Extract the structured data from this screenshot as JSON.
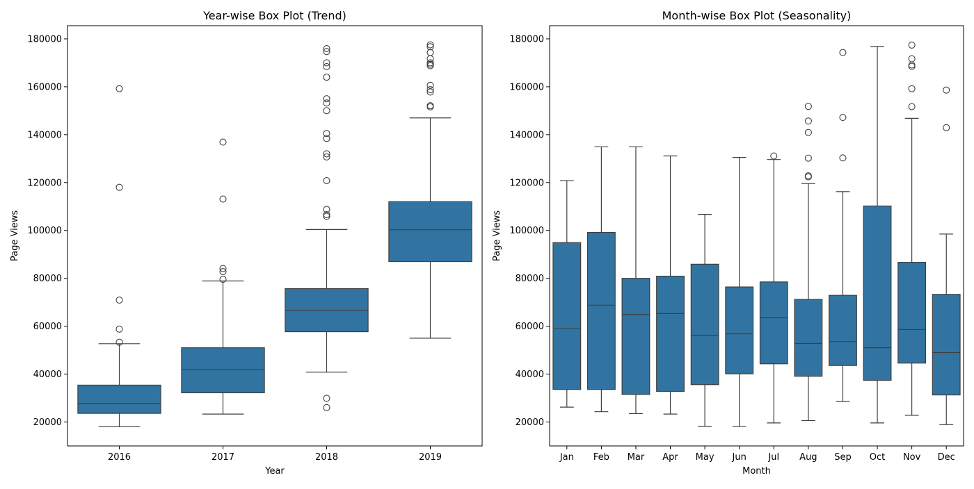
{
  "chart_data": [
    {
      "type": "box",
      "title": "Year-wise Box Plot (Trend)",
      "xlabel": "Year",
      "ylabel": "Page Views",
      "ylim": [
        10000,
        185500
      ],
      "yticks": [
        20000,
        40000,
        60000,
        80000,
        100000,
        120000,
        140000,
        160000,
        180000
      ],
      "color": "#3274a1",
      "categories": [
        "2016",
        "2017",
        "2018",
        "2019"
      ],
      "boxes": [
        {
          "category": "2016",
          "whisker_low": 18000,
          "q1": 23600,
          "median": 27800,
          "q3": 35400,
          "whisker_high": 52700,
          "outliers": [
            53300,
            58800,
            70900,
            118000,
            159200
          ]
        },
        {
          "category": "2017",
          "whisker_low": 23300,
          "q1": 32200,
          "median": 42000,
          "q3": 51000,
          "whisker_high": 78900,
          "outliers": [
            79600,
            82800,
            84100,
            113100,
            136900
          ]
        },
        {
          "category": "2018",
          "whisker_low": 40800,
          "q1": 57700,
          "median": 66500,
          "q3": 75700,
          "whisker_high": 100400,
          "outliers": [
            26000,
            29900,
            105900,
            106600,
            108800,
            120800,
            130700,
            132000,
            138400,
            140500,
            150000,
            153200,
            155000,
            164000,
            168400,
            170000,
            174700,
            175900
          ]
        },
        {
          "category": "2019",
          "whisker_low": 55000,
          "q1": 87000,
          "median": 100300,
          "q3": 112000,
          "whisker_high": 147000,
          "outliers": [
            151600,
            152100,
            157800,
            158800,
            160600,
            168800,
            169400,
            170000,
            171700,
            174300,
            176700,
            177500
          ]
        }
      ]
    },
    {
      "type": "box",
      "title": "Month-wise Box Plot (Seasonality)",
      "xlabel": "Month",
      "ylabel": "Page Views",
      "ylim": [
        10000,
        185500
      ],
      "yticks": [
        20000,
        40000,
        60000,
        80000,
        100000,
        120000,
        140000,
        160000,
        180000
      ],
      "color": "#3274a1",
      "categories": [
        "Jan",
        "Feb",
        "Mar",
        "Apr",
        "May",
        "Jun",
        "Jul",
        "Aug",
        "Sep",
        "Oct",
        "Nov",
        "Dec"
      ],
      "boxes": [
        {
          "category": "Jan",
          "whisker_low": 26200,
          "q1": 33600,
          "median": 58900,
          "q3": 94900,
          "whisker_high": 120800,
          "outliers": []
        },
        {
          "category": "Feb",
          "whisker_low": 24300,
          "q1": 33600,
          "median": 68800,
          "q3": 99200,
          "whisker_high": 134900,
          "outliers": []
        },
        {
          "category": "Mar",
          "whisker_low": 23500,
          "q1": 31500,
          "median": 64900,
          "q3": 80000,
          "whisker_high": 134900,
          "outliers": []
        },
        {
          "category": "Apr",
          "whisker_low": 23300,
          "q1": 32800,
          "median": 65300,
          "q3": 80900,
          "whisker_high": 131100,
          "outliers": []
        },
        {
          "category": "May",
          "whisker_low": 18200,
          "q1": 35600,
          "median": 56200,
          "q3": 85900,
          "whisker_high": 106700,
          "outliers": []
        },
        {
          "category": "Jun",
          "whisker_low": 18100,
          "q1": 40100,
          "median": 56800,
          "q3": 76400,
          "whisker_high": 130500,
          "outliers": []
        },
        {
          "category": "Jul",
          "whisker_low": 19600,
          "q1": 44300,
          "median": 63500,
          "q3": 78500,
          "whisker_high": 129600,
          "outliers": [
            131100
          ]
        },
        {
          "category": "Aug",
          "whisker_low": 20600,
          "q1": 39100,
          "median": 52800,
          "q3": 71200,
          "whisker_high": 119600,
          "outliers": [
            122400,
            122800,
            130200,
            140900,
            145700,
            151800
          ]
        },
        {
          "category": "Sep",
          "whisker_low": 28600,
          "q1": 43600,
          "median": 53600,
          "q3": 72900,
          "whisker_high": 116200,
          "outliers": [
            130300,
            147200,
            174300
          ]
        },
        {
          "category": "Oct",
          "whisker_low": 19600,
          "q1": 37400,
          "median": 51000,
          "q3": 110200,
          "whisker_high": 176800,
          "outliers": []
        },
        {
          "category": "Nov",
          "whisker_low": 22800,
          "q1": 44600,
          "median": 58600,
          "q3": 86700,
          "whisker_high": 146800,
          "outliers": [
            151700,
            159200,
            168500,
            169100,
            171700,
            177400
          ]
        },
        {
          "category": "Dec",
          "whisker_low": 18900,
          "q1": 31300,
          "median": 49000,
          "q3": 73300,
          "whisker_high": 98500,
          "outliers": [
            142900,
            158600
          ]
        }
      ]
    }
  ]
}
